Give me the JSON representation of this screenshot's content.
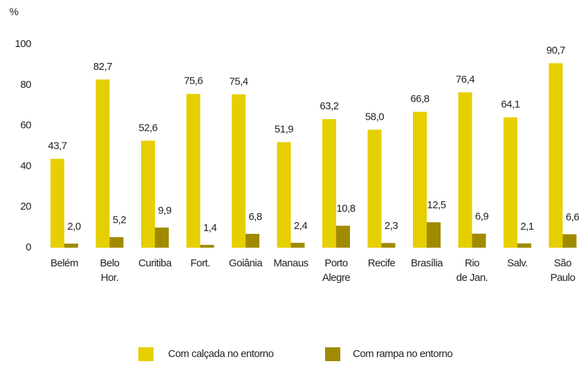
{
  "chart_data": {
    "type": "bar",
    "y_axis_label": "%",
    "categories": [
      [
        "Belém"
      ],
      [
        "Belo",
        "Hor."
      ],
      [
        "Curitiba"
      ],
      [
        "Fort."
      ],
      [
        "Goiânia"
      ],
      [
        "Manaus"
      ],
      [
        "Porto",
        "Alegre"
      ],
      [
        "Recife"
      ],
      [
        "Brasília"
      ],
      [
        "Rio",
        "de Jan."
      ],
      [
        "Salv."
      ],
      [
        "São",
        "Paulo"
      ]
    ],
    "series": [
      {
        "name": "Com calçada no entorno",
        "color": "#e6cf00",
        "values": [
          43.7,
          82.7,
          52.6,
          75.6,
          75.4,
          51.9,
          63.2,
          58.0,
          66.8,
          76.4,
          64.1,
          90.7
        ],
        "value_labels": [
          "43,7",
          "82,7",
          "52,6",
          "75,6",
          "75,4",
          "51,9",
          "63,2",
          "58,0",
          "66,8",
          "76,4",
          "64,1",
          "90,7"
        ]
      },
      {
        "name": "Com rampa no entorno",
        "color": "#a08b00",
        "values": [
          2.0,
          5.2,
          9.9,
          1.4,
          6.8,
          2.4,
          10.8,
          2.3,
          12.5,
          6.9,
          2.1,
          6.6
        ],
        "value_labels": [
          "2,0",
          "5,2",
          "9,9",
          "1,4",
          "6,8",
          "2,4",
          "10,8",
          "2,3",
          "12,5",
          "6,9",
          "2,1",
          "6,6"
        ]
      }
    ],
    "ylim": [
      0,
      100
    ],
    "yticks": [
      0,
      20,
      40,
      60,
      80,
      100
    ],
    "grid": false
  }
}
